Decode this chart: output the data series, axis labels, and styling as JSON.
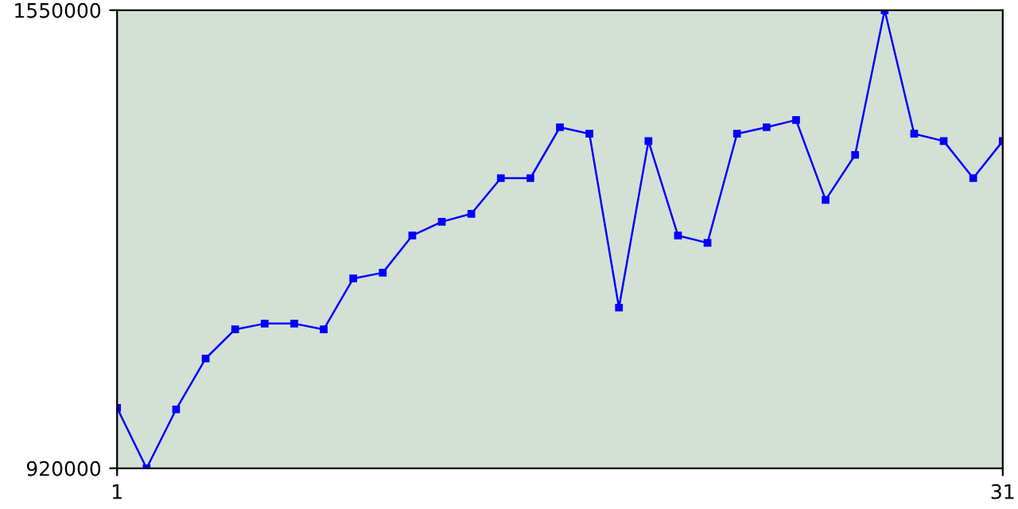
{
  "chart_data": {
    "type": "line",
    "x": [
      1,
      2,
      3,
      4,
      5,
      6,
      7,
      8,
      9,
      10,
      11,
      12,
      13,
      14,
      15,
      16,
      17,
      18,
      19,
      20,
      21,
      22,
      23,
      24,
      25,
      26,
      27,
      28,
      29,
      30,
      31
    ],
    "series": [
      {
        "color": "#0000ff",
        "values": [
          1003000,
          920000,
          1001000,
          1071000,
          1111000,
          1119000,
          1119000,
          1111000,
          1181000,
          1189000,
          1240000,
          1259000,
          1270000,
          1319000,
          1319000,
          1389000,
          1380000,
          1141000,
          1370000,
          1240000,
          1230000,
          1380000,
          1389000,
          1399000,
          1289000,
          1351000,
          1550000,
          1380000,
          1370000,
          1319000,
          1370000
        ]
      }
    ],
    "xlim": [
      1,
      31
    ],
    "xticks": [
      1,
      31
    ],
    "ylim": [
      920000,
      1550000
    ],
    "yticks": [
      920000,
      1550000
    ],
    "grid": false,
    "marker": "square",
    "line_style": "solid"
  }
}
